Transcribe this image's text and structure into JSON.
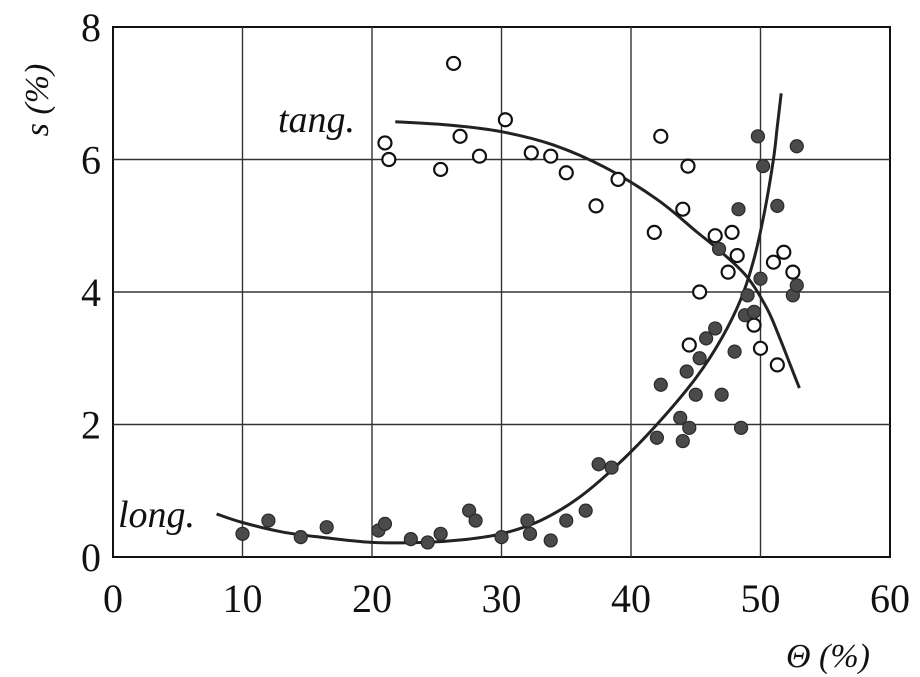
{
  "chart_data": {
    "type": "scatter",
    "title": "",
    "xlabel": "Θ (%)",
    "ylabel": "s (%)",
    "xlim": [
      0,
      60
    ],
    "ylim": [
      0,
      8
    ],
    "xticks": [
      "0",
      "10",
      "20",
      "30",
      "40",
      "50",
      "60"
    ],
    "yticks": [
      "0",
      "2",
      "4",
      "6",
      "8"
    ],
    "grid": true,
    "series": [
      {
        "name": "tang.",
        "marker": "open-circle",
        "points": [
          [
            21,
            6.25
          ],
          [
            21.3,
            6.0
          ],
          [
            25.3,
            5.85
          ],
          [
            26.3,
            7.45
          ],
          [
            26.8,
            6.35
          ],
          [
            28.3,
            6.05
          ],
          [
            30.3,
            6.6
          ],
          [
            32.3,
            6.1
          ],
          [
            33.8,
            6.05
          ],
          [
            35.0,
            5.8
          ],
          [
            37.3,
            5.3
          ],
          [
            39.0,
            5.7
          ],
          [
            41.8,
            4.9
          ],
          [
            42.3,
            6.35
          ],
          [
            44.0,
            5.25
          ],
          [
            44.4,
            5.9
          ],
          [
            44.5,
            3.2
          ],
          [
            45.3,
            4.0
          ],
          [
            46.5,
            4.85
          ],
          [
            47.5,
            4.3
          ],
          [
            47.8,
            4.9
          ],
          [
            48.2,
            4.55
          ],
          [
            49.5,
            3.5
          ],
          [
            50.0,
            3.15
          ],
          [
            51.0,
            4.45
          ],
          [
            51.3,
            2.9
          ],
          [
            51.8,
            4.6
          ],
          [
            52.5,
            4.3
          ]
        ]
      },
      {
        "name": "long.",
        "marker": "filled-circle",
        "points": [
          [
            10.0,
            0.35
          ],
          [
            12.0,
            0.55
          ],
          [
            14.5,
            0.3
          ],
          [
            16.5,
            0.45
          ],
          [
            20.5,
            0.4
          ],
          [
            21.0,
            0.5
          ],
          [
            23.0,
            0.27
          ],
          [
            24.3,
            0.22
          ],
          [
            25.3,
            0.35
          ],
          [
            27.5,
            0.7
          ],
          [
            28.0,
            0.55
          ],
          [
            30.0,
            0.3
          ],
          [
            32.0,
            0.55
          ],
          [
            32.2,
            0.35
          ],
          [
            33.8,
            0.25
          ],
          [
            35.0,
            0.55
          ],
          [
            36.5,
            0.7
          ],
          [
            37.5,
            1.4
          ],
          [
            38.5,
            1.35
          ],
          [
            42.0,
            1.8
          ],
          [
            42.3,
            2.6
          ],
          [
            43.8,
            2.1
          ],
          [
            44.0,
            1.75
          ],
          [
            44.3,
            2.8
          ],
          [
            44.5,
            1.95
          ],
          [
            45.0,
            2.45
          ],
          [
            45.3,
            3.0
          ],
          [
            45.8,
            3.3
          ],
          [
            46.5,
            3.45
          ],
          [
            46.8,
            4.65
          ],
          [
            47.0,
            2.45
          ],
          [
            48.0,
            3.1
          ],
          [
            48.3,
            5.25
          ],
          [
            48.5,
            1.95
          ],
          [
            48.8,
            3.65
          ],
          [
            49.0,
            3.95
          ],
          [
            49.5,
            3.7
          ],
          [
            49.8,
            6.35
          ],
          [
            50.0,
            4.2
          ],
          [
            50.2,
            5.9
          ],
          [
            51.3,
            5.3
          ],
          [
            52.5,
            3.95
          ],
          [
            52.8,
            6.2
          ],
          [
            52.8,
            4.1
          ]
        ]
      }
    ],
    "fit_curves": [
      {
        "series": "tang.",
        "points": [
          [
            21.8,
            6.57
          ],
          [
            26,
            6.52
          ],
          [
            30,
            6.42
          ],
          [
            34,
            6.22
          ],
          [
            38,
            5.88
          ],
          [
            42,
            5.4
          ],
          [
            45,
            4.92
          ],
          [
            47,
            4.6
          ],
          [
            49,
            4.22
          ],
          [
            50.5,
            3.75
          ],
          [
            51.5,
            3.3
          ],
          [
            52.3,
            2.9
          ],
          [
            53,
            2.55
          ]
        ]
      },
      {
        "series": "long.",
        "points": [
          [
            8,
            0.65
          ],
          [
            10,
            0.52
          ],
          [
            13,
            0.38
          ],
          [
            16,
            0.3
          ],
          [
            20,
            0.22
          ],
          [
            24,
            0.22
          ],
          [
            27,
            0.26
          ],
          [
            30,
            0.35
          ],
          [
            33,
            0.55
          ],
          [
            36,
            0.9
          ],
          [
            39,
            1.4
          ],
          [
            42,
            2.0
          ],
          [
            45,
            2.7
          ],
          [
            47,
            3.3
          ],
          [
            48.5,
            3.9
          ],
          [
            49.5,
            4.5
          ],
          [
            50.3,
            5.2
          ],
          [
            51,
            6.0
          ],
          [
            51.3,
            6.5
          ],
          [
            51.6,
            7.0
          ]
        ]
      }
    ]
  }
}
